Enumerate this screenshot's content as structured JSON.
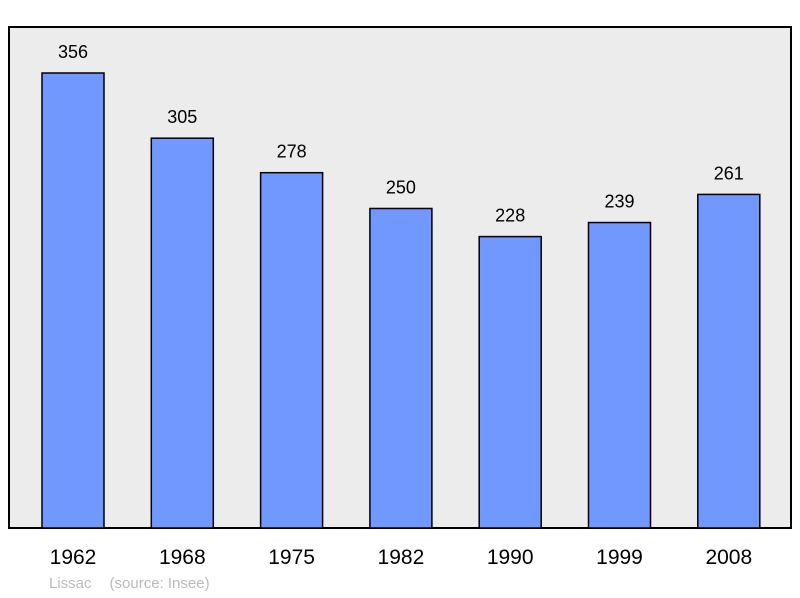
{
  "chart_data": {
    "type": "bar",
    "categories": [
      "1962",
      "1968",
      "1975",
      "1982",
      "1990",
      "1999",
      "2008"
    ],
    "values": [
      356,
      305,
      278,
      250,
      228,
      239,
      261
    ],
    "ylim": [
      0,
      356
    ],
    "grid": false,
    "colors": {
      "bar": "#7098ff",
      "plot_bg": "#ececec",
      "border": "#000000"
    }
  },
  "footer": {
    "place": "Lissac",
    "source": "(source: Insee)"
  }
}
